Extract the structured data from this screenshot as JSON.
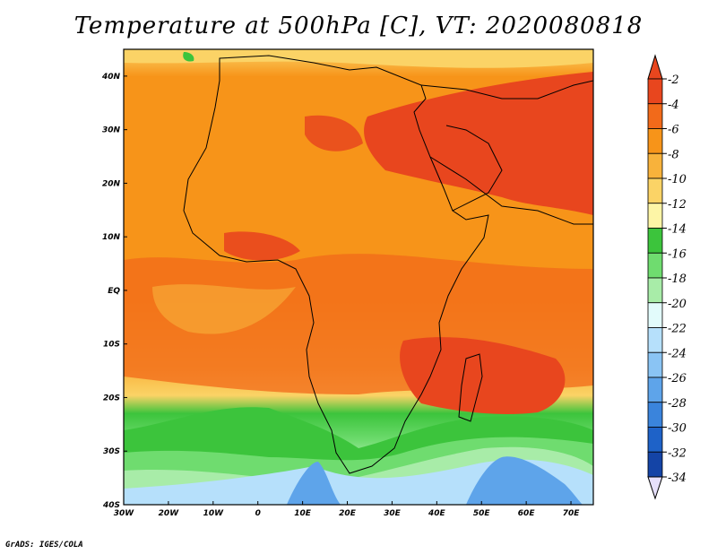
{
  "title": "Temperature at 500hPa [C], VT: 2020080818",
  "credit": "GrADS: IGES/COLA",
  "map": {
    "lon_range": [
      -30,
      75
    ],
    "lat_range": [
      -40,
      45
    ],
    "lon_ticks": [
      {
        "value": -30,
        "label": "30W"
      },
      {
        "value": -20,
        "label": "20W"
      },
      {
        "value": -10,
        "label": "10W"
      },
      {
        "value": 0,
        "label": "0"
      },
      {
        "value": 10,
        "label": "10E"
      },
      {
        "value": 20,
        "label": "20E"
      },
      {
        "value": 30,
        "label": "30E"
      },
      {
        "value": 40,
        "label": "40E"
      },
      {
        "value": 50,
        "label": "50E"
      },
      {
        "value": 60,
        "label": "60E"
      },
      {
        "value": 70,
        "label": "70E"
      }
    ],
    "lat_ticks": [
      {
        "value": 40,
        "label": "40N"
      },
      {
        "value": 30,
        "label": "30N"
      },
      {
        "value": 20,
        "label": "20N"
      },
      {
        "value": 10,
        "label": "10N"
      },
      {
        "value": 0,
        "label": "EQ"
      },
      {
        "value": -10,
        "label": "10S"
      },
      {
        "value": -20,
        "label": "20S"
      },
      {
        "value": -30,
        "label": "30S"
      },
      {
        "value": -40,
        "label": "40S"
      }
    ]
  },
  "colorbar": {
    "levels": [
      "-2",
      "-4",
      "-6",
      "-8",
      "-10",
      "-12",
      "-14",
      "-16",
      "-18",
      "-20",
      "-22",
      "-24",
      "-26",
      "-28",
      "-30",
      "-32",
      "-34"
    ],
    "colors": [
      "#e8461e",
      "#f26a1a",
      "#f79419",
      "#f8b23b",
      "#fbd366",
      "#fdf5a6",
      "#3cc43c",
      "#6fdc6f",
      "#a8eca8",
      "#e2fbfb",
      "#b6e0fb",
      "#8ac4f4",
      "#5ea4ea",
      "#3a84dc",
      "#1e62c8",
      "#1444a6",
      "#0c1e7a"
    ],
    "over_color": "#e8461e",
    "under_color": "#e6e0fa"
  }
}
